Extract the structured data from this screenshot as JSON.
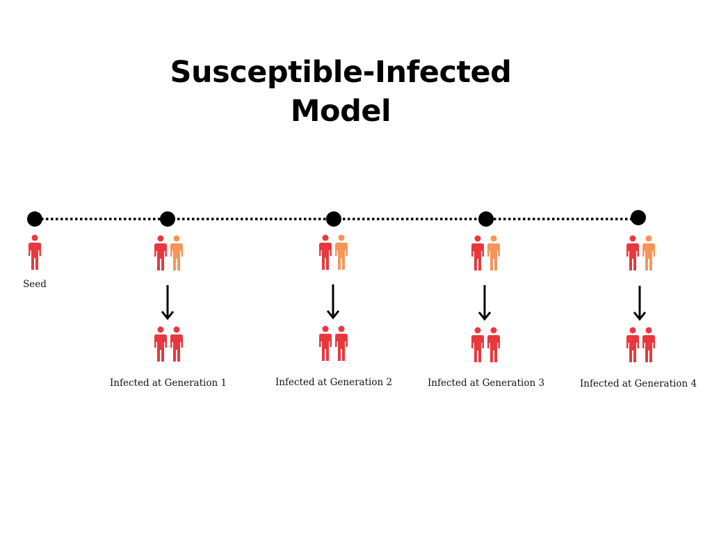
{
  "title": {
    "line1": "Susceptible-Infected",
    "line2": "Model"
  },
  "colors": {
    "infected": "#e8383d",
    "susceptible": "#f5955a",
    "node": "#000000",
    "arrow": "#000000"
  },
  "icons": {
    "person": "person-icon",
    "arrow": "arrow-down-icon"
  },
  "seed": {
    "label": "Seed"
  },
  "generations": [
    {
      "label": "Infected at Generation 1"
    },
    {
      "label": "Infected at Generation 2"
    },
    {
      "label": "Infected at Generation 3"
    },
    {
      "label": "Infected at Generation 4"
    }
  ]
}
